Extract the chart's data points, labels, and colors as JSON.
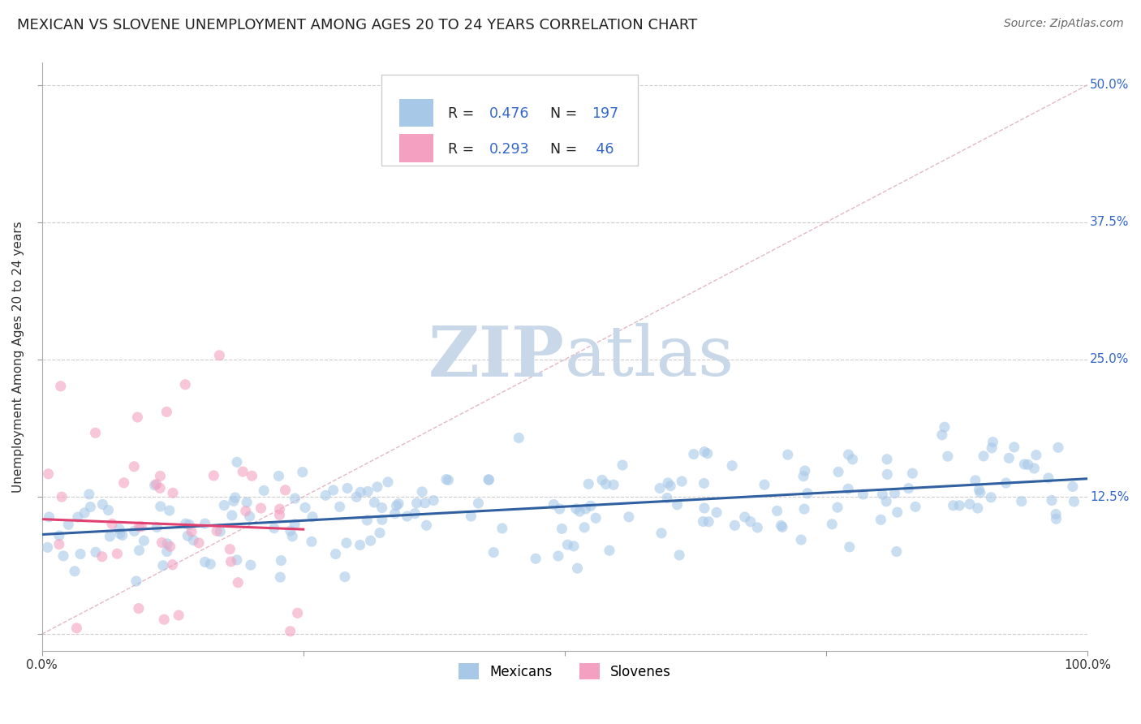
{
  "title": "MEXICAN VS SLOVENE UNEMPLOYMENT AMONG AGES 20 TO 24 YEARS CORRELATION CHART",
  "source": "Source: ZipAtlas.com",
  "ylabel": "Unemployment Among Ages 20 to 24 years",
  "xlabel": "",
  "xlim": [
    0.0,
    1.0
  ],
  "ylim": [
    -0.015,
    0.52
  ],
  "xticks": [
    0.0,
    0.25,
    0.5,
    0.75,
    1.0
  ],
  "xtick_labels": [
    "0.0%",
    "",
    "",
    "",
    "100.0%"
  ],
  "yticks": [
    0.0,
    0.125,
    0.25,
    0.375,
    0.5
  ],
  "ytick_labels": [
    "",
    "12.5%",
    "25.0%",
    "37.5%",
    "50.0%"
  ],
  "mexican_R": 0.476,
  "mexican_N": 197,
  "slovene_R": 0.293,
  "slovene_N": 46,
  "mexican_color": "#a8c8e8",
  "slovene_color": "#f4a0c0",
  "mexican_line_color": "#3060a0",
  "slovene_line_color": "#e04070",
  "diag_line_color": "#e0b0c0",
  "background_color": "#ffffff",
  "grid_color": "#cccccc",
  "watermark_zip_color": "#c8d8e8",
  "watermark_atlas_color": "#c8d8e8",
  "legend_color": "#3366cc",
  "title_fontsize": 13,
  "source_fontsize": 10,
  "seed_mexican": 42,
  "seed_slovene": 7
}
